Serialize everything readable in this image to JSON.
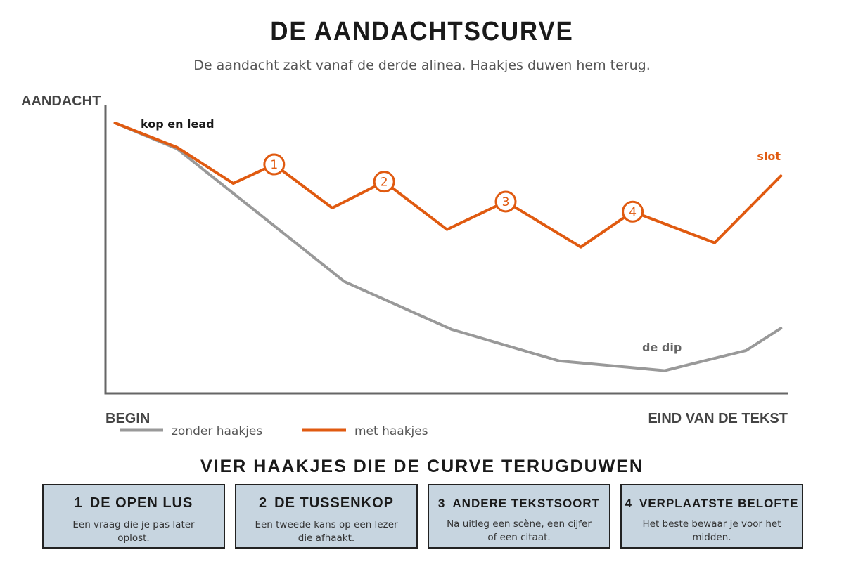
{
  "header": {
    "title": "DE AANDACHTSCURVE",
    "subtitle": "De aandacht zakt vanaf de derde alinea. Haakjes duwen hem terug."
  },
  "chart_data": {
    "type": "line",
    "ylabel": "AANDACHT",
    "xlabel_start": "BEGIN",
    "xlabel_end": "EIND VAN DE TEKST",
    "x": [
      0,
      8.8,
      17.3,
      23.9,
      33.2,
      41,
      50.8,
      59,
      68.9,
      77.6,
      89.1,
      97.1,
      100
    ],
    "ylim": [
      0,
      100
    ],
    "series": [
      {
        "name": "zonder haakjes",
        "color": "#999999",
        "points": [
          [
            1.4,
            93.9
          ],
          [
            10.5,
            84.9
          ],
          [
            35.0,
            38.8
          ],
          [
            50.7,
            22.2
          ],
          [
            66.4,
            11.3
          ],
          [
            81.9,
            7.9
          ],
          [
            93.8,
            14.9
          ],
          [
            98.9,
            22.6
          ]
        ]
      },
      {
        "name": "met haakjes",
        "color": "#e05a10",
        "points": [
          [
            1.4,
            93.9
          ],
          [
            10.5,
            85.4
          ],
          [
            18.7,
            72.9
          ],
          [
            24.7,
            79.5
          ],
          [
            33.2,
            64.4
          ],
          [
            40.8,
            73.5
          ],
          [
            50.0,
            56.9
          ],
          [
            58.6,
            66.6
          ],
          [
            69.6,
            50.8
          ],
          [
            77.2,
            63.1
          ],
          [
            89.2,
            52.3
          ],
          [
            98.9,
            75.5
          ]
        ],
        "markers": [
          {
            "label": "1",
            "at": [
              24.7,
              79.5
            ]
          },
          {
            "label": "2",
            "at": [
              40.8,
              73.5
            ]
          },
          {
            "label": "3",
            "at": [
              58.6,
              66.6
            ]
          },
          {
            "label": "4",
            "at": [
              77.2,
              63.1
            ]
          }
        ]
      }
    ],
    "annotations": {
      "head": "kop en lead",
      "dip": "de dip",
      "end": "slot"
    },
    "legend": [
      {
        "label": "zonder haakjes",
        "color": "#999999"
      },
      {
        "label": "met haakjes",
        "color": "#e05a10"
      }
    ]
  },
  "hooks": {
    "title": "VIER HAAKJES DIE DE CURVE TERUGDUWEN",
    "cards": [
      {
        "num": "1",
        "title": "DE OPEN LUS",
        "text": "Een vraag die je pas later oplost."
      },
      {
        "num": "2",
        "title": "DE TUSSENKOP",
        "text": "Een tweede kans op een lezer die afhaakt."
      },
      {
        "num": "3",
        "title": "ANDERE TEKSTSOORT",
        "text": "Na uitleg een scène, een cijfer of een citaat."
      },
      {
        "num": "4",
        "title": "VERPLAATSTE BELOFTE",
        "text": "Het beste bewaar je voor het midden."
      }
    ]
  }
}
